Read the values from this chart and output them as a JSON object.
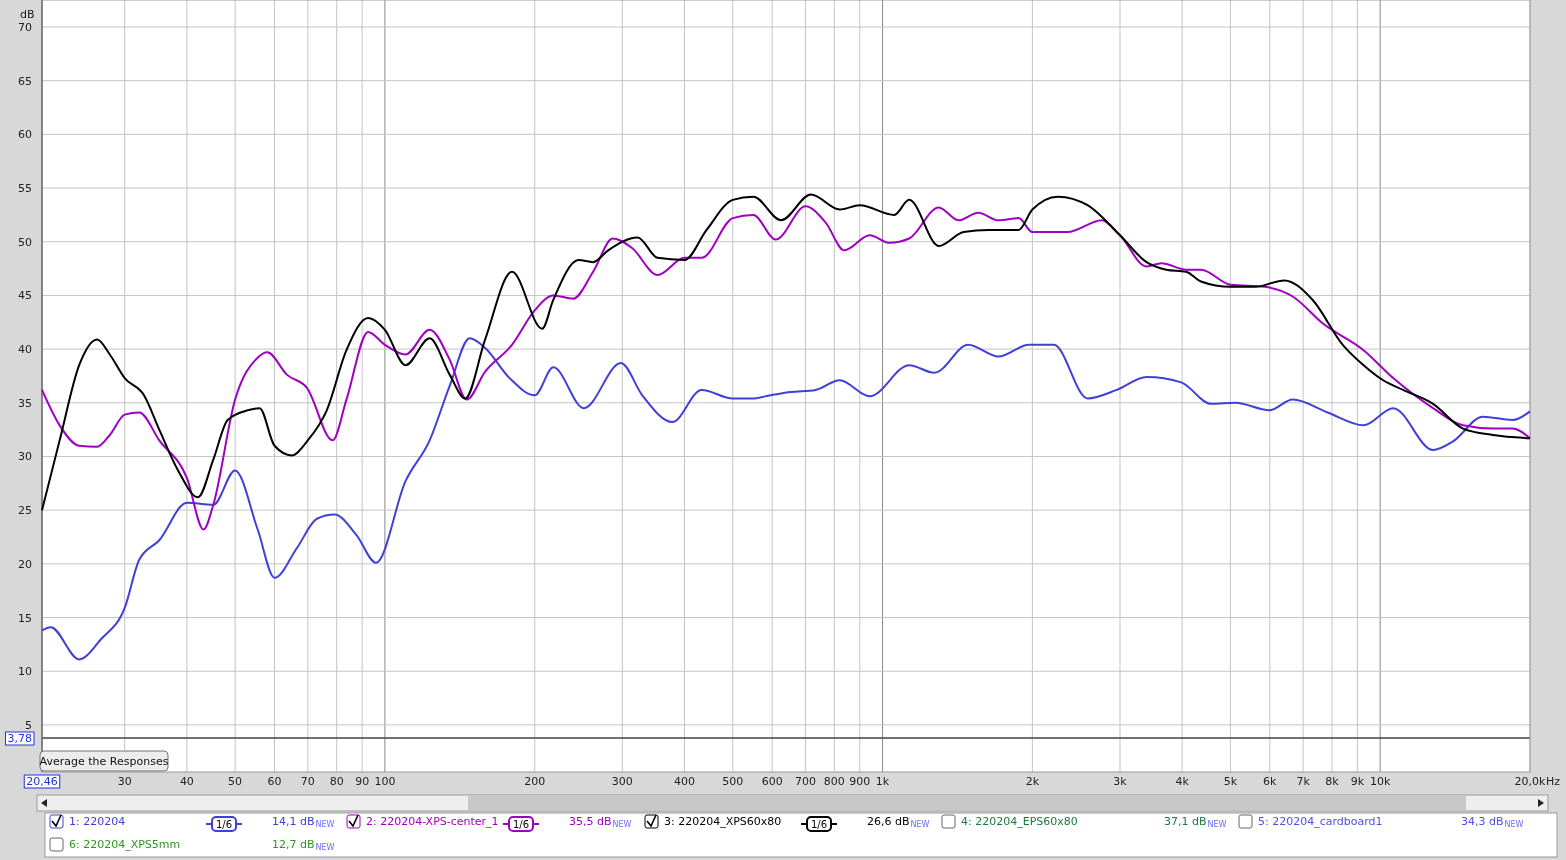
{
  "chart_data": {
    "type": "line",
    "ylabel": "dB",
    "xlim": [
      20.46,
      20000
    ],
    "ylim": [
      3.78,
      70
    ],
    "log": "x",
    "grid": true,
    "legend": "bottom",
    "line_style": "solid",
    "marker": "none",
    "xticks": [
      {
        "value": 20.46,
        "label": "20,46"
      },
      30,
      40,
      50,
      60,
      70,
      80,
      90,
      100,
      200,
      300,
      400,
      500,
      600,
      700,
      800,
      900,
      {
        "value": 1000,
        "label": "1k"
      },
      {
        "value": 2000,
        "label": "2k"
      },
      {
        "value": 3000,
        "label": "3k"
      },
      {
        "value": 4000,
        "label": "4k"
      },
      {
        "value": 5000,
        "label": "5k"
      },
      {
        "value": 6000,
        "label": "6k"
      },
      {
        "value": 7000,
        "label": "7k"
      },
      {
        "value": 8000,
        "label": "8k"
      },
      {
        "value": 9000,
        "label": "9k"
      },
      {
        "value": 10000,
        "label": "10k"
      },
      {
        "value": 20000,
        "label": "20,0k"
      }
    ],
    "xlabel": "Hz",
    "yticks": [
      {
        "value": 3.78,
        "label": "3,78"
      },
      5,
      10,
      15,
      20,
      25,
      30,
      35,
      40,
      45,
      50,
      55,
      60,
      65,
      70
    ],
    "annotations": [
      "Average the Responses",
      "1/6",
      "NEW",
      "14,1 dB",
      "35,5 dB",
      "26,6 dB",
      "4: 220204_EPS60x80",
      "37,1 dB",
      "5: 220204_cardboard1",
      "34,3 dB",
      "6: 220204_XPS5mm",
      "12,7 dB"
    ],
    "series": [
      {
        "name": "1: 220204",
        "color": "#4040d8",
        "x": [
          20.46,
          21.3,
          24.3,
          26.9,
          30,
          32.1,
          35.2,
          40,
          45.2,
          50,
          55.5,
          60,
          66.6,
          73,
          79.2,
          87.6,
          96,
          110,
          123,
          135,
          148,
          159,
          178,
          200,
          218,
          251,
          298,
          329,
          378,
          433,
          500,
          545,
          596,
          654,
          734,
          820,
          942,
          1131,
          1271,
          1486,
          1710,
          1968,
          2209,
          2582,
          2955,
          3392,
          3983,
          4570,
          5120,
          5990,
          6672,
          7840,
          9260,
          10620,
          12770,
          14000,
          16080,
          18460,
          20000
        ],
        "values": [
          13.8,
          14.1,
          11.1,
          13,
          15.9,
          20.4,
          22.2,
          25.7,
          25.5,
          28.7,
          23.2,
          18.7,
          21.5,
          24.2,
          24.6,
          22.7,
          20.1,
          27.7,
          31.5,
          36.6,
          41,
          40.1,
          37.3,
          35.7,
          38.3,
          34.5,
          38.7,
          35.7,
          33.2,
          36.2,
          35.4,
          35.4,
          35.7,
          36,
          36.2,
          37.1,
          35.6,
          38.5,
          37.8,
          40.4,
          39.3,
          40.4,
          40.4,
          35.4,
          36.2,
          37.4,
          36.9,
          34.9,
          35,
          34.3,
          35.3,
          34.1,
          32.9,
          34.5,
          30.6,
          31.4,
          33.7,
          33.4,
          34.2
        ]
      },
      {
        "name": "2: 220204-XPS-center_1",
        "color": "#a000c0",
        "x": [
          20.46,
          22.2,
          24.3,
          26.4,
          28,
          30,
          32.1,
          35.2,
          40,
          43.2,
          45.2,
          50,
          55.5,
          58,
          63.6,
          69.7,
          78.5,
          83.7,
          92.5,
          100,
          110,
          123,
          135,
          146,
          159,
          180,
          200,
          218,
          239,
          262,
          287,
          314,
          353,
          400,
          433,
          500,
          550,
          610,
          700,
          768,
          838,
          942,
          1033,
          1131,
          1297,
          1420,
          1557,
          1710,
          1877,
          2000,
          2352,
          2760,
          3000,
          3392,
          3634,
          4073,
          4364,
          5000,
          5860,
          6672,
          7660,
          9260,
          10620,
          12770,
          14670,
          16850,
          18460,
          20000
        ],
        "values": [
          36.2,
          32.9,
          31,
          30.9,
          32,
          33.9,
          34.1,
          31.5,
          28,
          23.2,
          25.5,
          35.3,
          39.2,
          39.7,
          37.6,
          36.4,
          31.5,
          35.3,
          41.6,
          40.4,
          39.5,
          41.8,
          39,
          35.3,
          37.9,
          40.4,
          43.6,
          45,
          44.7,
          47.2,
          50.3,
          49.4,
          46.9,
          48.5,
          48.5,
          52.2,
          52.5,
          50.2,
          53.3,
          51.8,
          49.2,
          50.6,
          49.9,
          50.3,
          53.2,
          52,
          52.7,
          52,
          52.2,
          50.9,
          50.9,
          52,
          50.6,
          47.7,
          48,
          47.4,
          47.4,
          46,
          45.8,
          44.9,
          42.4,
          39.9,
          37.3,
          34.5,
          32.9,
          32.6,
          32.6,
          31.7
        ]
      },
      {
        "name": "3: 220204_XPS60x80",
        "color": "#000000",
        "x": [
          20.46,
          22.2,
          24.3,
          26.4,
          28,
          30,
          32.8,
          35.2,
          38.4,
          42.1,
          45.2,
          48.3,
          53,
          56,
          60,
          65,
          70,
          76.4,
          83.7,
          92.5,
          100,
          110,
          123,
          135,
          145,
          159,
          180,
          207,
          218,
          245,
          262,
          281,
          322,
          353,
          400,
          443,
          500,
          550,
          625,
          718,
          820,
          900,
          1056,
          1131,
          1297,
          1454,
          1633,
          1877,
          2000,
          2250,
          2582,
          3000,
          3392,
          3718,
          4073,
          4364,
          5000,
          5595,
          6420,
          7310,
          8410,
          9260,
          10140,
          11120,
          12770,
          14670,
          16850,
          20000
        ],
        "values": [
          25,
          31.5,
          38.5,
          40.9,
          39.5,
          37.3,
          35.7,
          32.5,
          28.7,
          26.2,
          29.7,
          33.4,
          34.3,
          34.5,
          31,
          30.1,
          31.5,
          34.3,
          39.9,
          42.9,
          41.8,
          38.5,
          41,
          37.6,
          35.4,
          40.9,
          47.2,
          41.9,
          44.6,
          48.3,
          48.1,
          49.2,
          50.4,
          48.5,
          48.3,
          51.1,
          53.9,
          54.2,
          52,
          54.4,
          53,
          53.4,
          52.5,
          53.9,
          49.6,
          50.9,
          51.1,
          51.1,
          53,
          54.2,
          53.4,
          50.6,
          48.1,
          47.4,
          47.2,
          46.3,
          45.8,
          45.8,
          46.4,
          44.6,
          40.4,
          38.5,
          37.1,
          36.2,
          34.9,
          32.6,
          32,
          31.7
        ]
      }
    ]
  }
}
